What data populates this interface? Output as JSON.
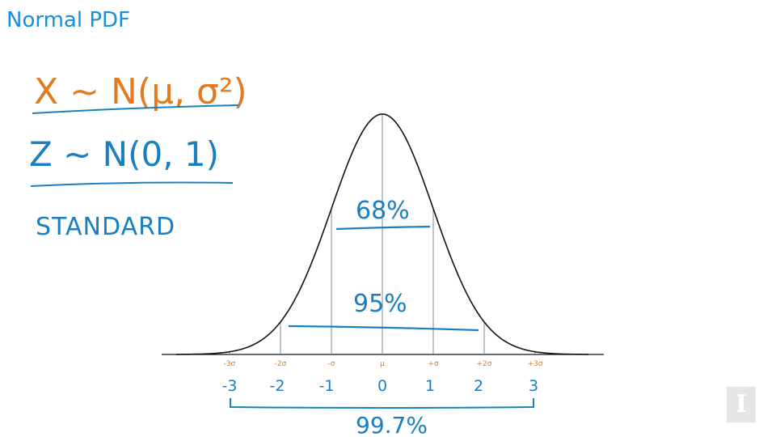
{
  "slide": {
    "title": "Normal PDF"
  },
  "notes": {
    "x_dist": "X ~ N(μ, σ²)",
    "z_dist": "Z ~ N(0, 1)",
    "standard": "STANDARD"
  },
  "curve": {
    "sigma_labels": [
      "-3σ",
      "-2σ",
      "-σ",
      "μ",
      "+σ",
      "+2σ",
      "+3σ"
    ],
    "z_labels": [
      "-3",
      "-2",
      "-1",
      "0",
      "1",
      "2",
      "3"
    ],
    "pct_68": "68%",
    "pct_95": "95%",
    "pct_997": "99.7%"
  },
  "colors": {
    "title": "#1a8fd6",
    "ink_blue": "#1a7fc0",
    "ink_orange": "#e07b22",
    "curve": "#111111",
    "gridline": "#888888"
  },
  "logo": {
    "letter": "I"
  }
}
